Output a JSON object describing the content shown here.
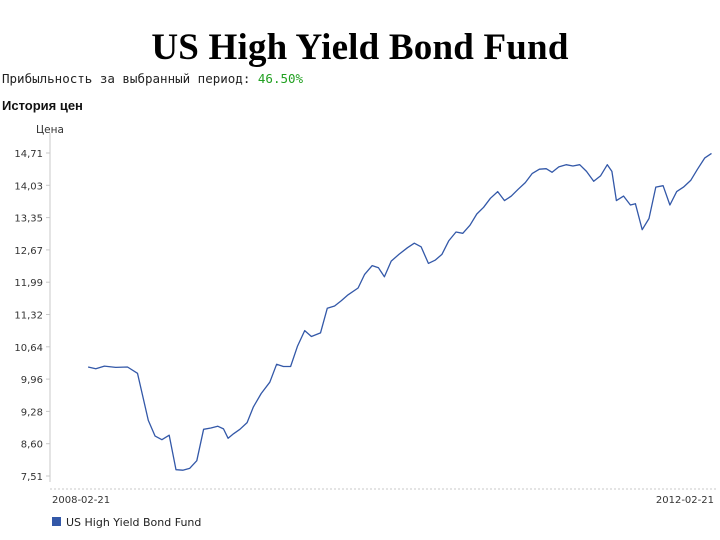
{
  "slide": {
    "title": "US High Yield Bond Fund"
  },
  "performance": {
    "label": "Прибыльность за выбранный период:",
    "value": "46.50%",
    "value_color": "#21a021"
  },
  "history": {
    "heading": "История цен"
  },
  "chart_data": {
    "type": "line",
    "ylabel": "Цена",
    "ylim": [
      7.51,
      14.71
    ],
    "y_ticks": [
      "14,71",
      "14,03",
      "13,35",
      "12,67",
      "11,99",
      "11,32",
      "10,64",
      "9,96",
      "9,28",
      "8,60",
      "7,51"
    ],
    "x_tick_labels": [
      "2008-02-21",
      "2012-02-21"
    ],
    "x_range": [
      "2008-02-21",
      "2012-02-21"
    ],
    "grid": false,
    "legend_position": "bottom-left",
    "line_color": "#3358a8",
    "series": [
      {
        "name": "US High Yield Bond Fund",
        "points": [
          [
            "2008-05-15",
            9.94
          ],
          [
            "2008-06-01",
            9.9
          ],
          [
            "2008-06-20",
            9.96
          ],
          [
            "2008-07-15",
            9.93
          ],
          [
            "2008-08-10",
            9.94
          ],
          [
            "2008-09-01",
            9.8
          ],
          [
            "2008-09-25",
            8.75
          ],
          [
            "2008-10-10",
            8.4
          ],
          [
            "2008-10-25",
            8.32
          ],
          [
            "2008-11-10",
            8.42
          ],
          [
            "2008-11-25",
            7.65
          ],
          [
            "2008-12-10",
            7.64
          ],
          [
            "2008-12-25",
            7.68
          ],
          [
            "2009-01-10",
            7.85
          ],
          [
            "2009-01-25",
            8.55
          ],
          [
            "2009-02-10",
            8.58
          ],
          [
            "2009-02-25",
            8.62
          ],
          [
            "2009-03-10",
            8.56
          ],
          [
            "2009-03-20",
            8.35
          ],
          [
            "2009-04-01",
            8.45
          ],
          [
            "2009-04-15",
            8.55
          ],
          [
            "2009-05-01",
            8.7
          ],
          [
            "2009-05-15",
            9.05
          ],
          [
            "2009-06-01",
            9.35
          ],
          [
            "2009-06-20",
            9.6
          ],
          [
            "2009-07-05",
            10.0
          ],
          [
            "2009-07-20",
            9.95
          ],
          [
            "2009-08-05",
            9.95
          ],
          [
            "2009-08-20",
            10.4
          ],
          [
            "2009-09-05",
            10.75
          ],
          [
            "2009-09-20",
            10.62
          ],
          [
            "2009-10-10",
            10.7
          ],
          [
            "2009-10-25",
            11.25
          ],
          [
            "2009-11-10",
            11.3
          ],
          [
            "2009-11-25",
            11.42
          ],
          [
            "2009-12-10",
            11.55
          ],
          [
            "2010-01-01",
            11.7
          ],
          [
            "2010-01-15",
            12.0
          ],
          [
            "2010-02-01",
            12.2
          ],
          [
            "2010-02-15",
            12.15
          ],
          [
            "2010-02-28",
            11.95
          ],
          [
            "2010-03-15",
            12.3
          ],
          [
            "2010-04-01",
            12.45
          ],
          [
            "2010-04-20",
            12.6
          ],
          [
            "2010-05-05",
            12.7
          ],
          [
            "2010-05-20",
            12.62
          ],
          [
            "2010-06-05",
            12.25
          ],
          [
            "2010-06-20",
            12.32
          ],
          [
            "2010-07-05",
            12.45
          ],
          [
            "2010-07-20",
            12.75
          ],
          [
            "2010-08-05",
            12.95
          ],
          [
            "2010-08-20",
            12.92
          ],
          [
            "2010-09-05",
            13.1
          ],
          [
            "2010-09-20",
            13.35
          ],
          [
            "2010-10-05",
            13.5
          ],
          [
            "2010-10-20",
            13.7
          ],
          [
            "2010-11-05",
            13.85
          ],
          [
            "2010-11-20",
            13.65
          ],
          [
            "2010-12-05",
            13.75
          ],
          [
            "2010-12-20",
            13.9
          ],
          [
            "2011-01-05",
            14.05
          ],
          [
            "2011-01-20",
            14.25
          ],
          [
            "2011-02-05",
            14.35
          ],
          [
            "2011-02-20",
            14.36
          ],
          [
            "2011-03-05",
            14.28
          ],
          [
            "2011-03-20",
            14.4
          ],
          [
            "2011-04-05",
            14.45
          ],
          [
            "2011-04-20",
            14.42
          ],
          [
            "2011-05-05",
            14.45
          ],
          [
            "2011-05-20",
            14.3
          ],
          [
            "2011-06-05",
            14.08
          ],
          [
            "2011-06-20",
            14.2
          ],
          [
            "2011-07-05",
            14.45
          ],
          [
            "2011-07-15",
            14.3
          ],
          [
            "2011-07-25",
            13.65
          ],
          [
            "2011-08-10",
            13.75
          ],
          [
            "2011-08-25",
            13.55
          ],
          [
            "2011-09-05",
            13.58
          ],
          [
            "2011-09-20",
            13.0
          ],
          [
            "2011-10-05",
            13.25
          ],
          [
            "2011-10-20",
            13.95
          ],
          [
            "2011-11-05",
            13.98
          ],
          [
            "2011-11-20",
            13.55
          ],
          [
            "2011-12-05",
            13.85
          ],
          [
            "2011-12-20",
            13.95
          ],
          [
            "2012-01-05",
            14.1
          ],
          [
            "2012-01-20",
            14.35
          ],
          [
            "2012-02-05",
            14.6
          ],
          [
            "2012-02-20",
            14.7
          ]
        ]
      }
    ]
  }
}
